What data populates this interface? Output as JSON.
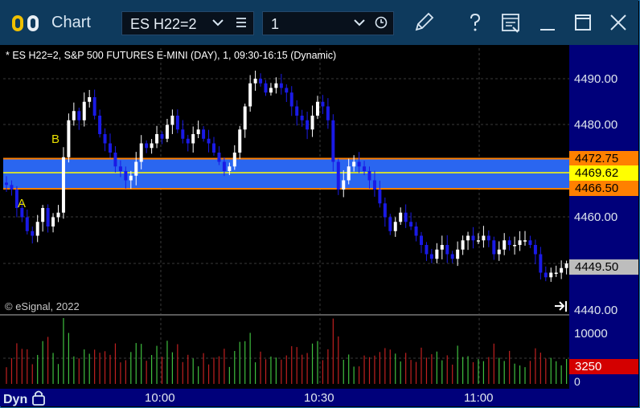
{
  "window": {
    "title": "Chart",
    "symbol": "ES H22=2",
    "interval": "1"
  },
  "chart": {
    "caption": "* ES H22=2, S&P 500 FUTURES E-MINI (DAY), 1, 09:30-16:15 (Dynamic)",
    "copyright": "© eSignal, 2022",
    "price_axis": [
      "4490.00",
      "4480.00",
      "4460.00",
      "4440.00"
    ],
    "price_tags": {
      "upper": "4472.75",
      "current": "4469.62",
      "lower": "4466.50",
      "last": "4449.50"
    },
    "markers": {
      "a": "A",
      "b": "B"
    },
    "volume_axis": {
      "top": "10000",
      "last": "3250",
      "zero": "0"
    },
    "time_axis": [
      "10:00",
      "10:30",
      "11:00"
    ],
    "mode": "Dyn",
    "colors": {
      "background": "#000000",
      "band": "#2a66f0",
      "band_edge": "#ff8000",
      "current_line": "#ffff00",
      "up_candle": "#ffffff",
      "down_candle": "#1a1ae6",
      "volume_up": "#3fbf3f",
      "volume_down": "#c02020",
      "axis_panel": "#00007a",
      "title_bar": "#0e3a5d"
    }
  },
  "chart_data": {
    "type": "candlestick",
    "instrument": "ES H22=2",
    "price_range": [
      4440,
      4492
    ],
    "grid": true,
    "marked_levels": [
      4472.75,
      4469.62,
      4466.5
    ],
    "last_price": 4449.5,
    "close_series": [
      4467,
      4466,
      4462,
      4460,
      4457,
      4456,
      4459,
      4462,
      4458,
      4460,
      4461,
      4473,
      4481,
      4483,
      4481,
      4485,
      4486,
      4482,
      4478,
      4476,
      4474,
      4471,
      4470,
      4468,
      4469,
      4472,
      4476,
      4475,
      4476,
      4478,
      4477,
      4480,
      4482,
      4479,
      4477,
      4476,
      4478,
      4479,
      4477,
      4476,
      4474,
      4472,
      4470,
      4471,
      4474,
      4479,
      4484,
      4489,
      4490,
      4489,
      4487,
      4488,
      4489,
      4488,
      4487,
      4484,
      4482,
      4481,
      4479,
      4482,
      4485,
      4484,
      4481,
      4472,
      4466,
      4468,
      4471,
      4472,
      4471,
      4470,
      4468,
      4466,
      4463,
      4460,
      4457,
      4459,
      4461,
      4459,
      4458,
      4456,
      4454,
      4452,
      4451,
      4453,
      4454,
      4452,
      4451,
      4453,
      4455,
      4456,
      4455,
      4455,
      4456,
      4455,
      4452,
      4453,
      4455,
      4454,
      4454,
      4455,
      4455,
      4454,
      4452,
      4448,
      4447,
      4448,
      4448,
      4449,
      4450
    ],
    "volume_range": [
      0,
      10000
    ],
    "last_volume": 3250,
    "time_labels": [
      "10:00",
      "10:30",
      "11:00"
    ]
  }
}
